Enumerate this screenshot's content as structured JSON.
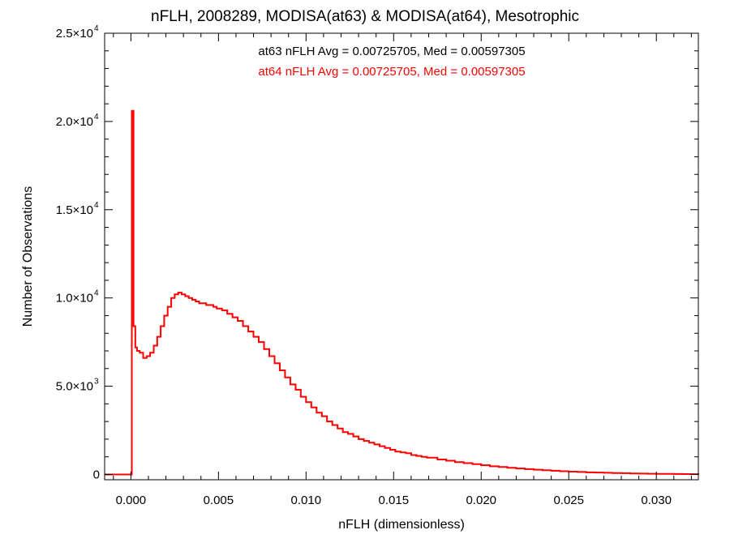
{
  "chart_data": {
    "type": "line",
    "title": "nFLH, 2008289, MODISA(at63) & MODISA(at64), Mesotrophic",
    "xlabel": "nFLH (dimensionless)",
    "ylabel": "Number of Observations",
    "xlim": [
      -0.0015,
      0.0324
    ],
    "ylim": [
      -300,
      25000
    ],
    "grid": false,
    "x_tick_labels": [
      "0.000",
      "0.005",
      "0.010",
      "0.015",
      "0.020",
      "0.025",
      "0.030"
    ],
    "y_tick_labels": [
      {
        "mant": "0",
        "exp": ""
      },
      {
        "mant": "5.0×10",
        "exp": "3"
      },
      {
        "mant": "1.0×10",
        "exp": "4"
      },
      {
        "mant": "1.5×10",
        "exp": "4"
      },
      {
        "mant": "2.0×10",
        "exp": "4"
      },
      {
        "mant": "2.5×10",
        "exp": "4"
      }
    ],
    "annotations": [
      {
        "text": "at63 nFLH Avg = 0.00725705, Med = 0.00597305",
        "color": "#000000"
      },
      {
        "text": "at64 nFLH Avg = 0.00725705, Med = 0.00597305",
        "color": "#ff0000"
      }
    ],
    "series": [
      {
        "color": "#ff0000",
        "step": true,
        "x": [
          -0.0015,
          -5e-05,
          -5e-05,
          5e-05,
          5e-05,
          0.00015,
          0.00015,
          0.00025,
          0.00035,
          0.0005,
          0.0007,
          0.0009,
          0.0011,
          0.0013,
          0.0015,
          0.0017,
          0.0019,
          0.0021,
          0.0023,
          0.0025,
          0.0027,
          0.0029,
          0.0031,
          0.0033,
          0.0035,
          0.0037,
          0.0039,
          0.0041,
          0.0043,
          0.0045,
          0.0047,
          0.0049,
          0.0052,
          0.0055,
          0.0058,
          0.0061,
          0.0064,
          0.0067,
          0.007,
          0.0073,
          0.0076,
          0.0079,
          0.0082,
          0.0085,
          0.0088,
          0.0091,
          0.0094,
          0.0097,
          0.01,
          0.0103,
          0.0106,
          0.0109,
          0.0112,
          0.0115,
          0.0118,
          0.0121,
          0.0124,
          0.0127,
          0.013,
          0.0133,
          0.0136,
          0.0139,
          0.0142,
          0.0145,
          0.0148,
          0.0151,
          0.0154,
          0.0157,
          0.016,
          0.0163,
          0.0166,
          0.0169,
          0.0175,
          0.018,
          0.0185,
          0.019,
          0.0195,
          0.02,
          0.0205,
          0.021,
          0.0215,
          0.022,
          0.0225,
          0.023,
          0.0235,
          0.024,
          0.0245,
          0.025,
          0.0255,
          0.026,
          0.0265,
          0.027,
          0.0275,
          0.028,
          0.0285,
          0.029,
          0.0295,
          0.03,
          0.0305,
          0.031,
          0.0315,
          0.032,
          0.0324
        ],
        "y": [
          0,
          0,
          0,
          0,
          20600,
          20600,
          8400,
          7200,
          7000,
          6900,
          6600,
          6700,
          6900,
          7300,
          7800,
          8400,
          9000,
          9500,
          10000,
          10200,
          10300,
          10200,
          10100,
          10000,
          9900,
          9800,
          9700,
          9700,
          9600,
          9600,
          9500,
          9400,
          9300,
          9100,
          8900,
          8700,
          8400,
          8100,
          7800,
          7500,
          7100,
          6700,
          6300,
          5900,
          5500,
          5100,
          4800,
          4400,
          4100,
          3800,
          3500,
          3300,
          3000,
          2800,
          2600,
          2400,
          2300,
          2150,
          2000,
          1900,
          1800,
          1700,
          1600,
          1500,
          1400,
          1300,
          1250,
          1200,
          1100,
          1050,
          1000,
          950,
          850,
          780,
          700,
          640,
          580,
          520,
          460,
          420,
          380,
          340,
          300,
          270,
          240,
          210,
          180,
          160,
          140,
          120,
          110,
          95,
          80,
          70,
          60,
          50,
          40,
          35,
          30,
          25,
          20,
          15,
          0
        ]
      },
      {
        "color": "#000000",
        "step": true,
        "x": [
          -0.0015,
          -5e-05,
          -5e-05,
          5e-05,
          5e-05,
          0.00015,
          0.00015,
          0.00025,
          0.00035,
          0.0005,
          0.0007,
          0.0009,
          0.0011,
          0.0013,
          0.0015,
          0.0017,
          0.0019,
          0.0021,
          0.0023,
          0.0025,
          0.0027,
          0.0029,
          0.0031,
          0.0033,
          0.0035,
          0.0037,
          0.0039,
          0.0041,
          0.0043,
          0.0045,
          0.0047,
          0.0049,
          0.0052,
          0.0055,
          0.0058,
          0.0061,
          0.0064,
          0.0067,
          0.007,
          0.0073,
          0.0076,
          0.0079,
          0.0082,
          0.0085,
          0.0088,
          0.0091,
          0.0094,
          0.0097,
          0.01,
          0.0103,
          0.0106,
          0.0109,
          0.0112,
          0.0115,
          0.0118,
          0.0121,
          0.0124,
          0.0127,
          0.013,
          0.0133,
          0.0136,
          0.0139,
          0.0142,
          0.0145,
          0.0148,
          0.0151,
          0.0154,
          0.0157,
          0.016,
          0.0163,
          0.0166,
          0.0169,
          0.0175,
          0.018,
          0.0185,
          0.019,
          0.0195,
          0.02,
          0.0205,
          0.021,
          0.0215,
          0.022,
          0.0225,
          0.023,
          0.0235,
          0.024,
          0.0245,
          0.025,
          0.0255,
          0.026,
          0.0265,
          0.027,
          0.0275,
          0.028,
          0.0285,
          0.029,
          0.0295,
          0.03,
          0.0305,
          0.031,
          0.0315,
          0.032,
          0.0324
        ],
        "y": [
          0,
          0,
          0,
          0,
          20600,
          20600,
          8400,
          7200,
          7000,
          6900,
          6600,
          6700,
          6900,
          7300,
          7800,
          8400,
          9000,
          9500,
          10000,
          10200,
          10300,
          10200,
          10100,
          10000,
          9900,
          9800,
          9700,
          9700,
          9600,
          9600,
          9500,
          9400,
          9300,
          9100,
          8900,
          8700,
          8400,
          8100,
          7800,
          7500,
          7100,
          6700,
          6300,
          5900,
          5500,
          5100,
          4800,
          4400,
          4100,
          3800,
          3500,
          3300,
          3000,
          2800,
          2600,
          2400,
          2300,
          2150,
          2000,
          1900,
          1800,
          1700,
          1600,
          1500,
          1400,
          1300,
          1250,
          1200,
          1100,
          1050,
          1000,
          950,
          850,
          780,
          700,
          640,
          580,
          520,
          460,
          420,
          380,
          340,
          300,
          270,
          240,
          210,
          180,
          160,
          140,
          120,
          110,
          95,
          80,
          70,
          60,
          50,
          40,
          35,
          30,
          25,
          20,
          15,
          0
        ]
      }
    ]
  }
}
